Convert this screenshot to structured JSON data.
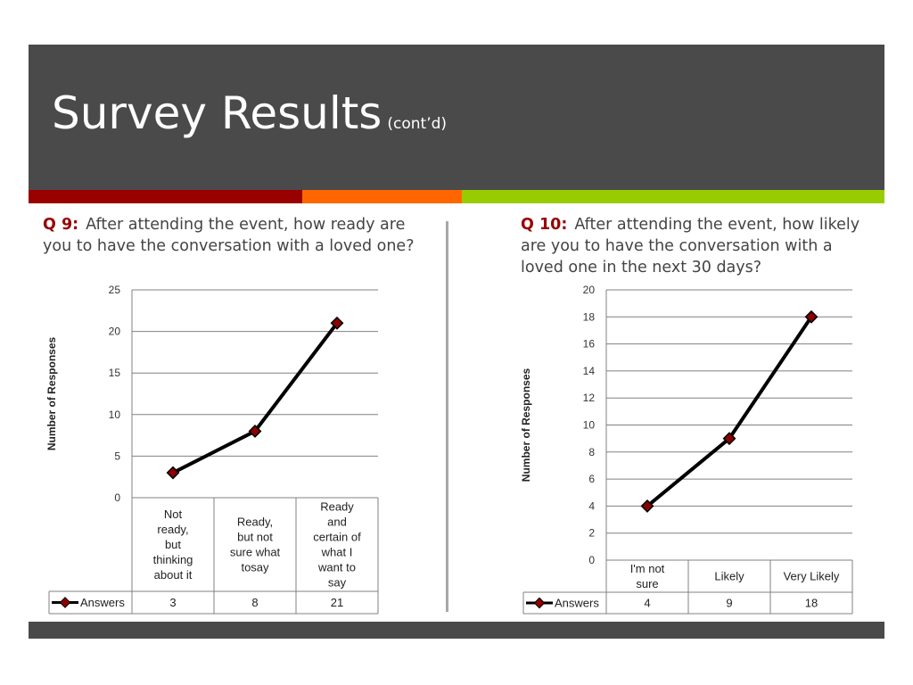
{
  "slide": {
    "title": "Survey Results",
    "title_suffix": "(cont’d)"
  },
  "colors": {
    "header": "#4a4a4a",
    "stripe_red": "#990000",
    "stripe_orange": "#ff6600",
    "stripe_green": "#99cc00",
    "question_number": "#990000",
    "marker": "#8b0000",
    "line": "#000000"
  },
  "questions": {
    "q9": {
      "number": "Q 9:",
      "text": "After attending the event, how ready are you to have the conversation with a loved one?"
    },
    "q10": {
      "number": "Q 10:",
      "text": "After attending the event, how likely are you to have the conversation with a loved one in the next 30 days?"
    }
  },
  "chart_data": [
    {
      "type": "line",
      "ylabel": "Number of Responses",
      "ylim": [
        0,
        25
      ],
      "yticks": [
        0,
        5,
        10,
        15,
        20,
        25
      ],
      "categories": [
        "Not ready, but thinking about it",
        "Ready, but not sure what tosay",
        "Ready and certain of what I want to say"
      ],
      "category_lines": [
        [
          "Not",
          "ready,",
          "but",
          "thinking",
          "about it"
        ],
        [
          "Ready,",
          "but not",
          "sure what",
          "tosay"
        ],
        [
          "Ready",
          "and",
          "certain of",
          "what I",
          "want to",
          "say"
        ]
      ],
      "series": [
        {
          "name": "Answers",
          "values": [
            3,
            8,
            21
          ]
        }
      ],
      "grid": true,
      "legend": "data-table"
    },
    {
      "type": "line",
      "ylabel": "Number of Responses",
      "ylim": [
        0,
        20
      ],
      "yticks": [
        0,
        2,
        4,
        6,
        8,
        10,
        12,
        14,
        16,
        18,
        20
      ],
      "categories": [
        "I'm not sure",
        "Likely",
        "Very Likely"
      ],
      "category_lines": [
        [
          "I'm not",
          "sure"
        ],
        [
          "Likely"
        ],
        [
          "Very Likely"
        ]
      ],
      "series": [
        {
          "name": "Answers",
          "values": [
            4,
            9,
            18
          ]
        }
      ],
      "grid": true,
      "legend": "data-table"
    }
  ]
}
